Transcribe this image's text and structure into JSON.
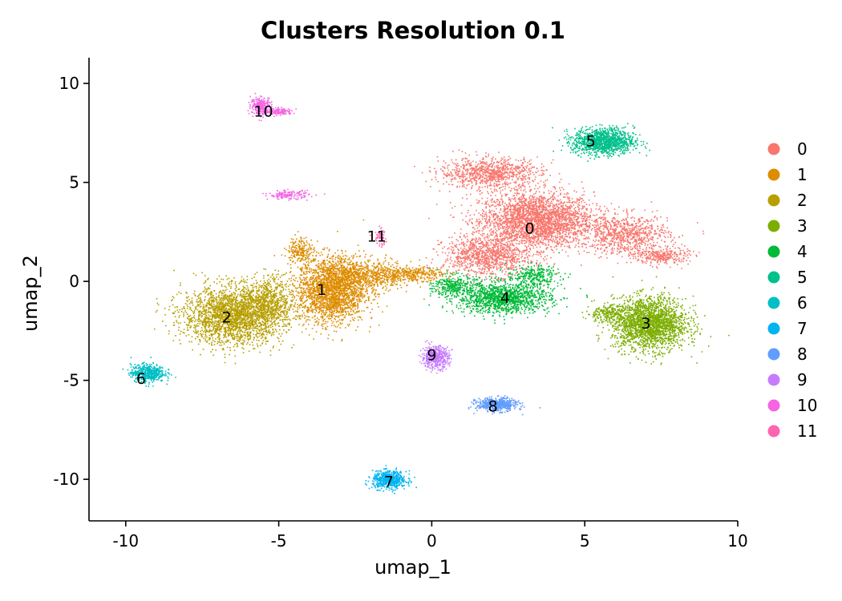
{
  "chart_data": {
    "type": "scatter",
    "title": "Clusters Resolution 0.1",
    "xlabel": "umap_1",
    "ylabel": "umap_2",
    "xlim": [
      -11.2,
      10
    ],
    "ylim": [
      -12.1,
      11.3
    ],
    "x_ticks": [
      -10,
      -5,
      0,
      5,
      10
    ],
    "x_tick_labels": [
      "-10",
      "-5",
      "0",
      "5",
      "10"
    ],
    "y_ticks": [
      -10,
      -5,
      0,
      5,
      10
    ],
    "y_tick_labels": [
      "-10",
      "-5",
      "0",
      "5",
      "10"
    ],
    "grid": false,
    "legend_position": "right",
    "series": [
      {
        "name": "0",
        "label": "0",
        "color": "#F8766D",
        "label_pos": [
          3.2,
          2.7
        ],
        "blobs": [
          [
            3.4,
            3.1,
            1.7,
            1.3,
            2800
          ],
          [
            1.8,
            1.3,
            1.3,
            0.9,
            1000
          ],
          [
            1.9,
            5.5,
            1.5,
            0.7,
            900
          ],
          [
            6.3,
            2.4,
            1.3,
            0.9,
            800
          ],
          [
            7.5,
            1.3,
            0.8,
            0.4,
            300
          ]
        ]
      },
      {
        "name": "1",
        "label": "1",
        "color": "#DE8C00",
        "label_pos": [
          -3.6,
          -0.4
        ],
        "blobs": [
          [
            -3.3,
            -0.4,
            1.0,
            1.5,
            2200
          ],
          [
            -2.1,
            0.3,
            1.3,
            0.7,
            700
          ],
          [
            -0.6,
            0.4,
            0.9,
            0.3,
            300
          ],
          [
            -4.3,
            1.6,
            0.4,
            0.6,
            200
          ]
        ]
      },
      {
        "name": "2",
        "label": "2",
        "color": "#B79F00",
        "label_pos": [
          -6.7,
          -1.8
        ],
        "blobs": [
          [
            -6.5,
            -1.7,
            1.5,
            1.3,
            2400
          ],
          [
            -5.4,
            -1.0,
            0.8,
            1.2,
            600
          ]
        ]
      },
      {
        "name": "3",
        "label": "3",
        "color": "#7CAE00",
        "label_pos": [
          7.0,
          -2.1
        ],
        "blobs": [
          [
            7.1,
            -2.1,
            1.1,
            1.2,
            2200
          ],
          [
            5.7,
            -1.6,
            0.6,
            0.4,
            200
          ]
        ]
      },
      {
        "name": "4",
        "label": "4",
        "color": "#00BA38",
        "label_pos": [
          2.4,
          -0.8
        ],
        "blobs": [
          [
            2.3,
            -0.8,
            1.4,
            0.7,
            1400
          ],
          [
            0.7,
            -0.2,
            0.6,
            0.5,
            300
          ],
          [
            3.3,
            0.3,
            0.8,
            0.5,
            300
          ]
        ]
      },
      {
        "name": "5",
        "label": "5",
        "color": "#00C08B",
        "label_pos": [
          5.2,
          7.1
        ],
        "blobs": [
          [
            5.6,
            7.1,
            0.9,
            0.6,
            1200
          ]
        ]
      },
      {
        "name": "6",
        "label": "6",
        "color": "#00BFC4",
        "label_pos": [
          -9.5,
          -4.9
        ],
        "blobs": [
          [
            -9.3,
            -4.6,
            0.5,
            0.4,
            500
          ]
        ]
      },
      {
        "name": "7",
        "label": "7",
        "color": "#00B4F0",
        "label_pos": [
          -1.4,
          -10.1
        ],
        "blobs": [
          [
            -1.4,
            -10.0,
            0.5,
            0.4,
            550
          ]
        ]
      },
      {
        "name": "8",
        "label": "8",
        "color": "#619CFF",
        "label_pos": [
          2.0,
          -6.3
        ],
        "blobs": [
          [
            2.1,
            -6.2,
            0.6,
            0.3,
            550
          ]
        ]
      },
      {
        "name": "9",
        "label": "9",
        "color": "#C77CFF",
        "label_pos": [
          0.0,
          -3.7
        ],
        "blobs": [
          [
            0.1,
            -3.8,
            0.4,
            0.5,
            500
          ]
        ]
      },
      {
        "name": "10",
        "label": "10",
        "color": "#F564E3",
        "label_pos": [
          -5.5,
          8.6
        ],
        "blobs": [
          [
            -5.6,
            8.9,
            0.3,
            0.4,
            250
          ],
          [
            -5.0,
            8.6,
            0.4,
            0.15,
            150
          ],
          [
            -4.7,
            4.4,
            0.6,
            0.2,
            150
          ]
        ]
      },
      {
        "name": "11",
        "label": "11",
        "color": "#FF64B0",
        "label_pos": [
          -1.8,
          2.3
        ],
        "blobs": [
          [
            -1.7,
            2.2,
            0.2,
            0.4,
            60
          ]
        ]
      }
    ]
  }
}
